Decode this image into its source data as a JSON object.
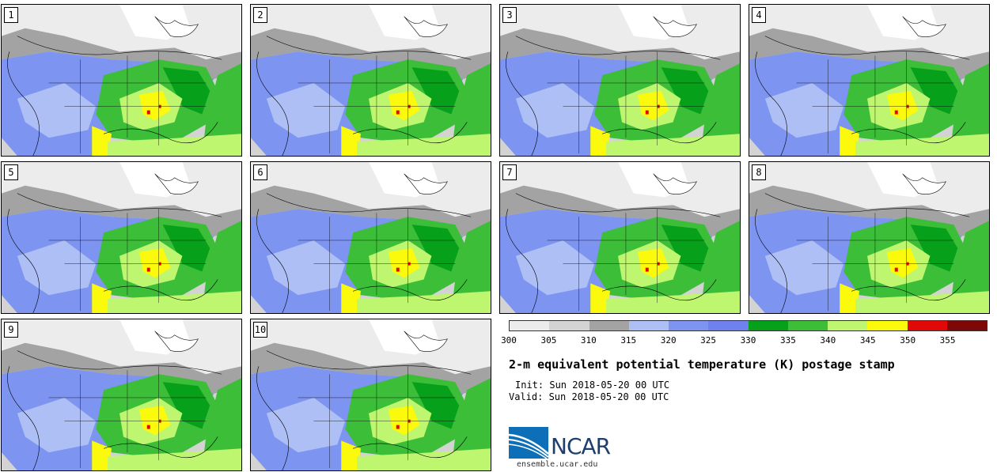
{
  "stamps": [
    {
      "label": "1"
    },
    {
      "label": "2"
    },
    {
      "label": "3"
    },
    {
      "label": "4"
    },
    {
      "label": "5"
    },
    {
      "label": "6"
    },
    {
      "label": "7"
    },
    {
      "label": "8"
    },
    {
      "label": "9"
    },
    {
      "label": "10"
    }
  ],
  "colorbar": {
    "colors": [
      "#ececec",
      "#d3d3d3",
      "#a3a3a3",
      "#aebff5",
      "#7d94f1",
      "#6f80ef",
      "#06a01b",
      "#3cbe38",
      "#bff66f",
      "#fbfa0c",
      "#e10808",
      "#7e0707"
    ],
    "ticks": [
      "300",
      "305",
      "310",
      "315",
      "320",
      "325",
      "330",
      "335",
      "340",
      "345",
      "350",
      "355"
    ]
  },
  "title": "2-m equivalent potential temperature (K) postage stamp",
  "init": "Init: Sun 2018-05-20 00 UTC",
  "valid": "Valid: Sun 2018-05-20 00 UTC",
  "logo": {
    "text": "NCAR",
    "url": "ensemble.ucar.edu"
  }
}
